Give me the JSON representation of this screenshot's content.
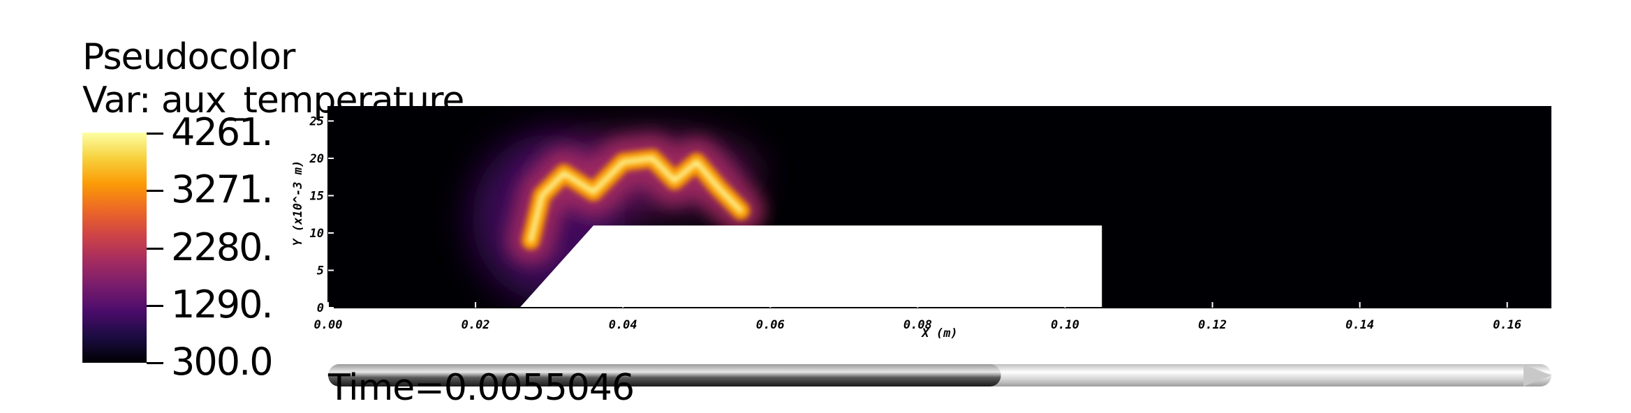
{
  "legend": {
    "title": "Pseudocolor",
    "variable": "Var: aux_temperature",
    "labels": [
      "4261.",
      "3271.",
      "2280.",
      "1290.",
      "300.0"
    ],
    "colormap": [
      "#fcffa4",
      "#f7d13d",
      "#fb9b06",
      "#ed6925",
      "#cf4446",
      "#a52c60",
      "#781c6d",
      "#4a0c6b",
      "#1b0c41",
      "#000004"
    ]
  },
  "time": {
    "label": "Time=0.0055046",
    "progress": 0.55
  },
  "chart_data": {
    "type": "heatmap",
    "title": "",
    "xlabel": "X (m)",
    "ylabel": "Y (x10^-3 m)",
    "xlim": [
      0.0,
      0.166
    ],
    "ylim": [
      0,
      27
    ],
    "xticks": [
      "0.00",
      "0.02",
      "0.04",
      "0.06",
      "0.08",
      "0.10",
      "0.12",
      "0.14",
      "0.16"
    ],
    "yticks": [
      "0",
      "5",
      "10",
      "15",
      "20",
      "25"
    ],
    "colorbar_range": [
      300.0,
      4261.0
    ],
    "obstacle": {
      "outline": [
        [
          0.026,
          0
        ],
        [
          0.036,
          11
        ],
        [
          0.105,
          11
        ],
        [
          0.105,
          0
        ]
      ],
      "color": "#ffffff"
    },
    "flame_ridge": {
      "x": [
        0.0275,
        0.029,
        0.032,
        0.036,
        0.04,
        0.044,
        0.047,
        0.05,
        0.053,
        0.056
      ],
      "y": [
        9,
        15,
        18,
        15.5,
        19.5,
        20,
        17,
        19.5,
        16,
        13
      ]
    },
    "background_color": "#000004"
  }
}
